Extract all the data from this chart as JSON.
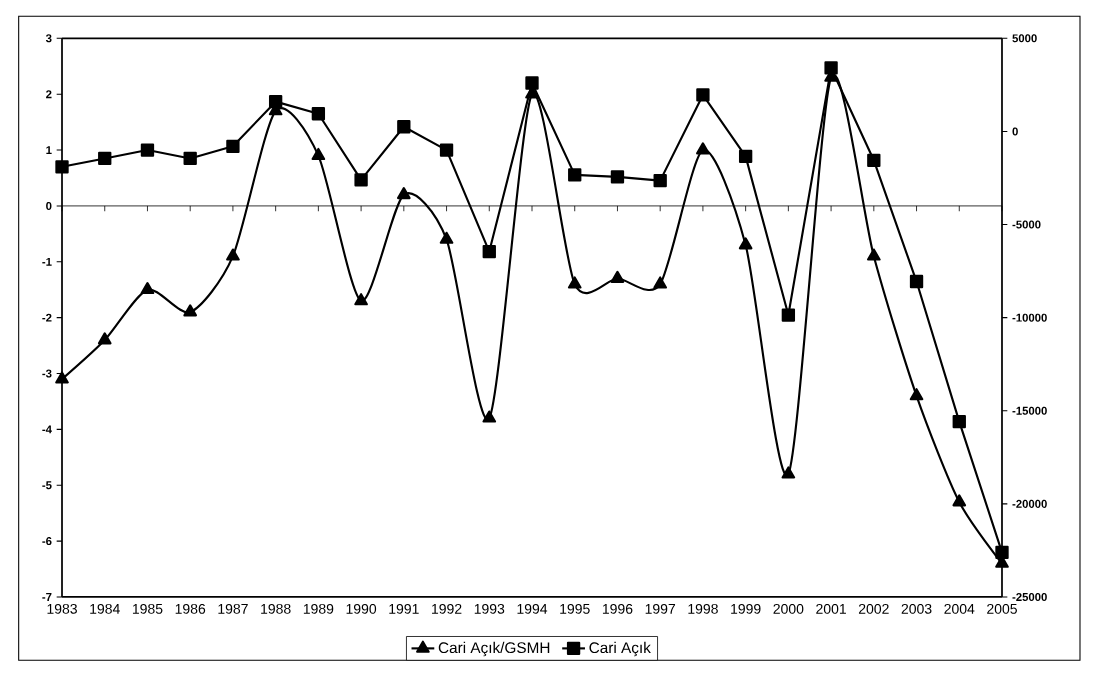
{
  "chart_data": {
    "type": "line",
    "categories": [
      "1983",
      "1984",
      "1985",
      "1986",
      "1987",
      "1988",
      "1989",
      "1990",
      "1991",
      "1992",
      "1993",
      "1994",
      "1995",
      "1996",
      "1997",
      "1998",
      "1999",
      "2000",
      "2001",
      "2002",
      "2003",
      "2004",
      "2005"
    ],
    "series": [
      {
        "name": "Cari Açık/GSMH",
        "color": "#000000",
        "marker": "triangle",
        "values": [
          -3.1,
          -2.4,
          -1.5,
          -1.9,
          -0.9,
          1.7,
          0.9,
          -1.7,
          0.2,
          -0.6,
          -3.8,
          2.0,
          -1.4,
          -1.3,
          -1.4,
          1.0,
          -0.7,
          -4.8,
          2.3,
          -0.9,
          -3.4,
          -5.3,
          -6.4
        ]
      },
      {
        "name": "Cari Açık",
        "color": "#000000",
        "marker": "square",
        "axis": "y2",
        "values": [
          -1900,
          -1450,
          -1000,
          -1450,
          -800,
          1600,
          950,
          -2600,
          250,
          -1000,
          -6450,
          2600,
          -2330,
          -2440,
          -2640,
          1960,
          -1340,
          -9860,
          3410,
          -1550,
          -8060,
          -15580,
          -22600
        ]
      }
    ],
    "ylim": [
      -7,
      3
    ],
    "yticks": [
      -7,
      -6,
      -5,
      -4,
      -3,
      -2,
      -1,
      0,
      1,
      2,
      3
    ],
    "y2lim": [
      -25000,
      5000
    ],
    "y2ticks": [
      -25000,
      -20000,
      -15000,
      -10000,
      -5000,
      0,
      5000
    ],
    "legend": "bottom",
    "line_style": "solid"
  }
}
